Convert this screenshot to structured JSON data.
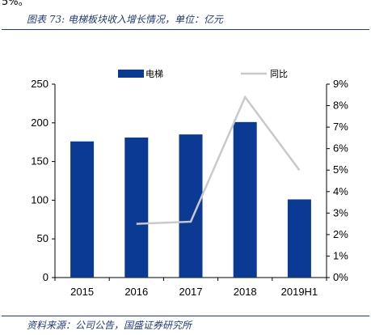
{
  "top_fragment": "5%。",
  "figure_title": "图表 73:  电梯板块收入增长情况，单位：亿元",
  "source": "资料来源：公司公告，国盛证券研究所",
  "colors": {
    "bar": "#0b3a94",
    "line": "#c9c9c9",
    "rule": "#1f3a7a"
  },
  "chart_data": {
    "type": "bar",
    "categories": [
      "2015",
      "2016",
      "2017",
      "2018",
      "2019H1"
    ],
    "series": [
      {
        "name": "电梯",
        "type": "bar",
        "axis": "left",
        "values": [
          176,
          181,
          185,
          201,
          101
        ]
      },
      {
        "name": "同比",
        "type": "line",
        "axis": "right",
        "values": [
          null,
          2.5,
          2.6,
          8.4,
          5.0
        ]
      }
    ],
    "y_left": {
      "min": 0,
      "max": 250,
      "ticks": [
        "0",
        "50",
        "100",
        "150",
        "200",
        "250"
      ]
    },
    "y_right": {
      "min": 0,
      "max": 9,
      "unit": "%",
      "ticks": [
        "0%",
        "1%",
        "2%",
        "3%",
        "4%",
        "5%",
        "6%",
        "7%",
        "8%",
        "9%"
      ]
    },
    "legend_position": "top-center",
    "grid": false
  }
}
